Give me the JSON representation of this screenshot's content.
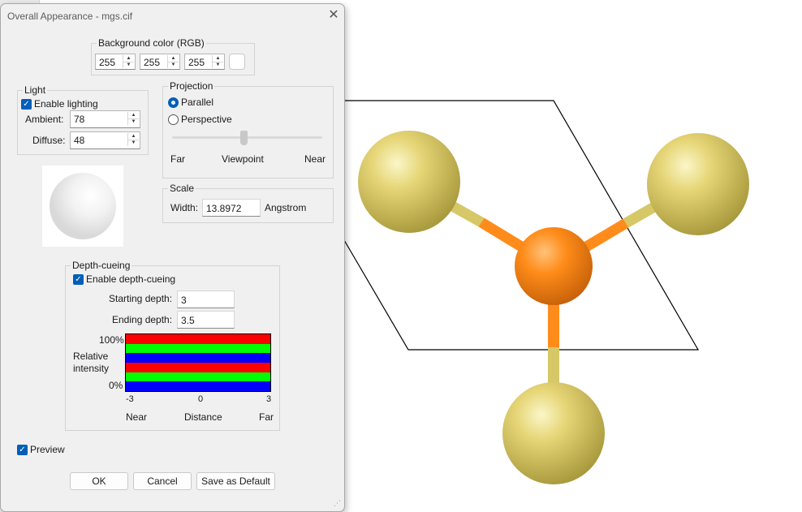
{
  "dialog": {
    "title": "Overall Appearance - mgs.cif",
    "close_glyph": "✕"
  },
  "background": {
    "label": "Background color (RGB)",
    "r": "255",
    "g": "255",
    "b": "255",
    "swatch_color": "#ffffff"
  },
  "light": {
    "label": "Light",
    "enable_label": "Enable lighting",
    "enabled": true,
    "ambient_label": "Ambient:",
    "ambient": "78",
    "diffuse_label": "Diffuse:",
    "diffuse": "48"
  },
  "projection": {
    "label": "Projection",
    "options": [
      "Parallel",
      "Perspective"
    ],
    "selected": "Parallel",
    "far_label": "Far",
    "viewpoint_label": "Viewpoint",
    "near_label": "Near"
  },
  "scale": {
    "label": "Scale",
    "width_label": "Width:",
    "width": "13.8972",
    "unit": "Angstrom"
  },
  "depth": {
    "label": "Depth-cueing",
    "enable_label": "Enable depth-cueing",
    "enabled": true,
    "start_label": "Starting depth:",
    "start": "3",
    "end_label": "Ending depth:",
    "end": "3.5",
    "chart": {
      "y_top": "100%",
      "y_bottom": "0%",
      "y_label_1": "Relative",
      "y_label_2": "intensity",
      "ticks": [
        "-3",
        "0",
        "3"
      ],
      "x_left": "Near",
      "x_center": "Distance",
      "x_right": "Far",
      "stripe_colors": [
        "#ff0000",
        "#00ff00",
        "#0000ff",
        "#ff0000",
        "#00ff00",
        "#0000ff"
      ]
    }
  },
  "preview": {
    "label": "Preview",
    "checked": true
  },
  "buttons": {
    "ok": "OK",
    "cancel": "Cancel",
    "save_default": "Save as Default"
  },
  "molecule": {
    "center_color": "#ff8c1a",
    "ligand_color": "#e8d870"
  },
  "icons": {
    "check": "✓",
    "up": "▲",
    "down": "▼"
  }
}
